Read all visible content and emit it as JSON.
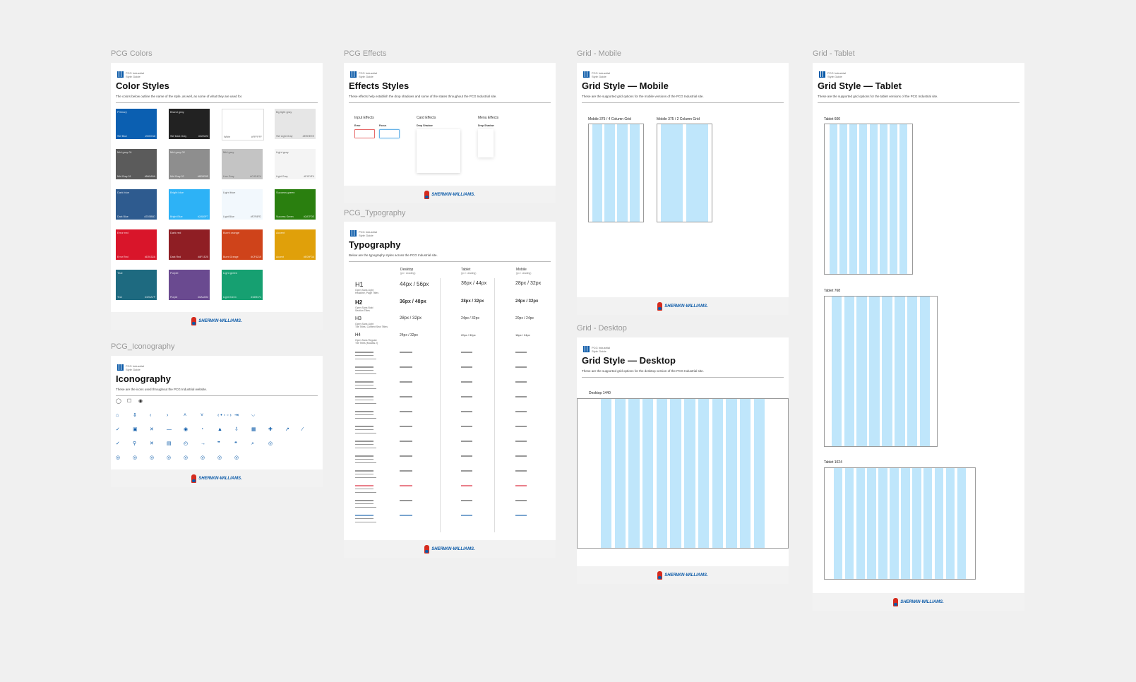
{
  "header": {
    "logo_text_line1": "PCG Industrial",
    "logo_text_line2": "Style Guide"
  },
  "brand": {
    "name": "SHERWIN-WILLIAMS."
  },
  "frames": {
    "colors": {
      "label": "PCG Colors",
      "title": "Color Styles",
      "desc": "The colors below outline the name of the style, as well, as some of what they are used for.",
      "swatches": [
        {
          "name": "Primary",
          "label": "SW Blue",
          "hex": "#0057A8",
          "color": "#0b5fb1"
        },
        {
          "name": "Brand gray",
          "label": "SW Dark Gray",
          "hex": "#222222",
          "color": "#222222"
        },
        {
          "name": "",
          "label": "White",
          "hex": "#FFFFFF",
          "color": "#ffffff"
        },
        {
          "name": "Bg light gray",
          "label": "SW Light Gray",
          "hex": "#EEEEEE",
          "color": "#e6e6e6"
        },
        {
          "name": "Mid gray 01",
          "label": "Mid Gray 01",
          "hex": "#5A5A5A",
          "color": "#5b5b5b"
        },
        {
          "name": "Mid gray 02",
          "label": "Mid Gray 02",
          "hex": "#8E8E8E",
          "color": "#8e8e8e"
        },
        {
          "name": "Mid gray",
          "label": "Line Gray",
          "hex": "#C4C4C4",
          "color": "#c4c4c4"
        },
        {
          "name": "Light gray",
          "label": "Light Gray",
          "hex": "#F4F4F4",
          "color": "#f4f4f4"
        },
        {
          "name": "Dark blue",
          "label": "Dark Blue",
          "hex": "#2D5B8D",
          "color": "#2e5b8f"
        },
        {
          "name": "Bright blue",
          "label": "Bright Blue",
          "hex": "#2AB0F7",
          "color": "#2db2f6"
        },
        {
          "name": "Light blue",
          "label": "Light Blue",
          "hex": "#F2F8FD",
          "color": "#f2f8fd"
        },
        {
          "name": "Success green",
          "label": "Success Green",
          "hex": "#2A7F0E",
          "color": "#2a7f0f"
        },
        {
          "name": "Error red",
          "label": "Error Red",
          "hex": "#D9152A",
          "color": "#d9152a"
        },
        {
          "name": "Dark red",
          "label": "Dark Red",
          "hex": "#8F1E25",
          "color": "#8f1e24"
        },
        {
          "name": "Burnt orange",
          "label": "Burnt Orange",
          "hex": "#CF4219",
          "color": "#cf431a"
        },
        {
          "name": "Accent",
          "label": "Accent",
          "hex": "#E09F0A",
          "color": "#e0a00a"
        },
        {
          "name": "Teal",
          "label": "Teal",
          "hex": "#1E6A7F",
          "color": "#1e6a80"
        },
        {
          "name": "Purple",
          "label": "Purple",
          "hex": "#6A4A92",
          "color": "#6a4a90"
        },
        {
          "name": "Light green",
          "label": "Light Green",
          "hex": "#169D71",
          "color": "#16a071"
        }
      ]
    },
    "iconography": {
      "label": "PCG_Iconography",
      "title": "Iconography",
      "desc": "These are the icons used throughout the PCG Industrial website."
    },
    "effects": {
      "label": "PCG Effects",
      "title": "Effects Styles",
      "desc": "These effects help establish the drop shadows and some of the states throughout the PCG Industrial site.",
      "input_effects": "Input Effects",
      "card_effects": "Card Effects",
      "menu_effects": "Menu Effects",
      "error": "Error",
      "focus": "Focus",
      "drop_shadow": "Drop Shadow",
      "drop_shadow_2": "Drop Shadow"
    },
    "typography": {
      "label": "PCG_Typography",
      "title": "Typography",
      "desc": "Below are the typography styles across the PCG Industrial site.",
      "col_desktop": "Desktop",
      "col_tablet": "Tablet",
      "col_mobile": "Mobile",
      "col_sub": "(px / Leading)",
      "rows": [
        {
          "name": "H1",
          "meta1": "Open Sans Light",
          "meta2": "Headline, Page Titles",
          "d": "44px / 56px",
          "t": "36px / 44px",
          "m": "28px / 32px"
        },
        {
          "name": "H2",
          "meta1": "Open Sans Bold",
          "meta2": "Section Titles",
          "d": "36px / 48px",
          "t": "28px / 32px",
          "m": "24px / 32px"
        },
        {
          "name": "H3",
          "meta1": "Open Sans Light",
          "meta2": "Tile Titles, Content Sect Titles",
          "d": "28px / 32px",
          "t": "24px / 32px",
          "m": "20px / 24px"
        },
        {
          "name": "H4",
          "meta1": "Open Sans Regular",
          "meta2": "Tile Titles (Modals 2)",
          "d": "24px / 32px",
          "t": "20px / 32px",
          "m": "18px / 24px"
        }
      ]
    },
    "grid_mobile": {
      "label": "Grid - Mobile",
      "title": "Grid Style — Mobile",
      "desc": "These are the supported grid options for the mobile versions of the PCG Industrial site.",
      "g1": "Mobile 375 / 4 Column Grid",
      "g2": "Mobile 375 / 2 Column Grid"
    },
    "grid_desktop": {
      "label": "Grid - Desktop",
      "title": "Grid Style — Desktop",
      "desc": "These are the supported grid options for the desktop version of the PCG Industrial site.",
      "g1": "Desktop 1440"
    },
    "grid_tablet": {
      "label": "Grid - Tablet",
      "title": "Grid Style — Tablet",
      "desc": "These are the supported grid options for the tablet versions of the PCG Industrial site.",
      "g1": "Tablet 600",
      "g2": "Tablet 768",
      "g3": "Tablet 1024"
    }
  }
}
